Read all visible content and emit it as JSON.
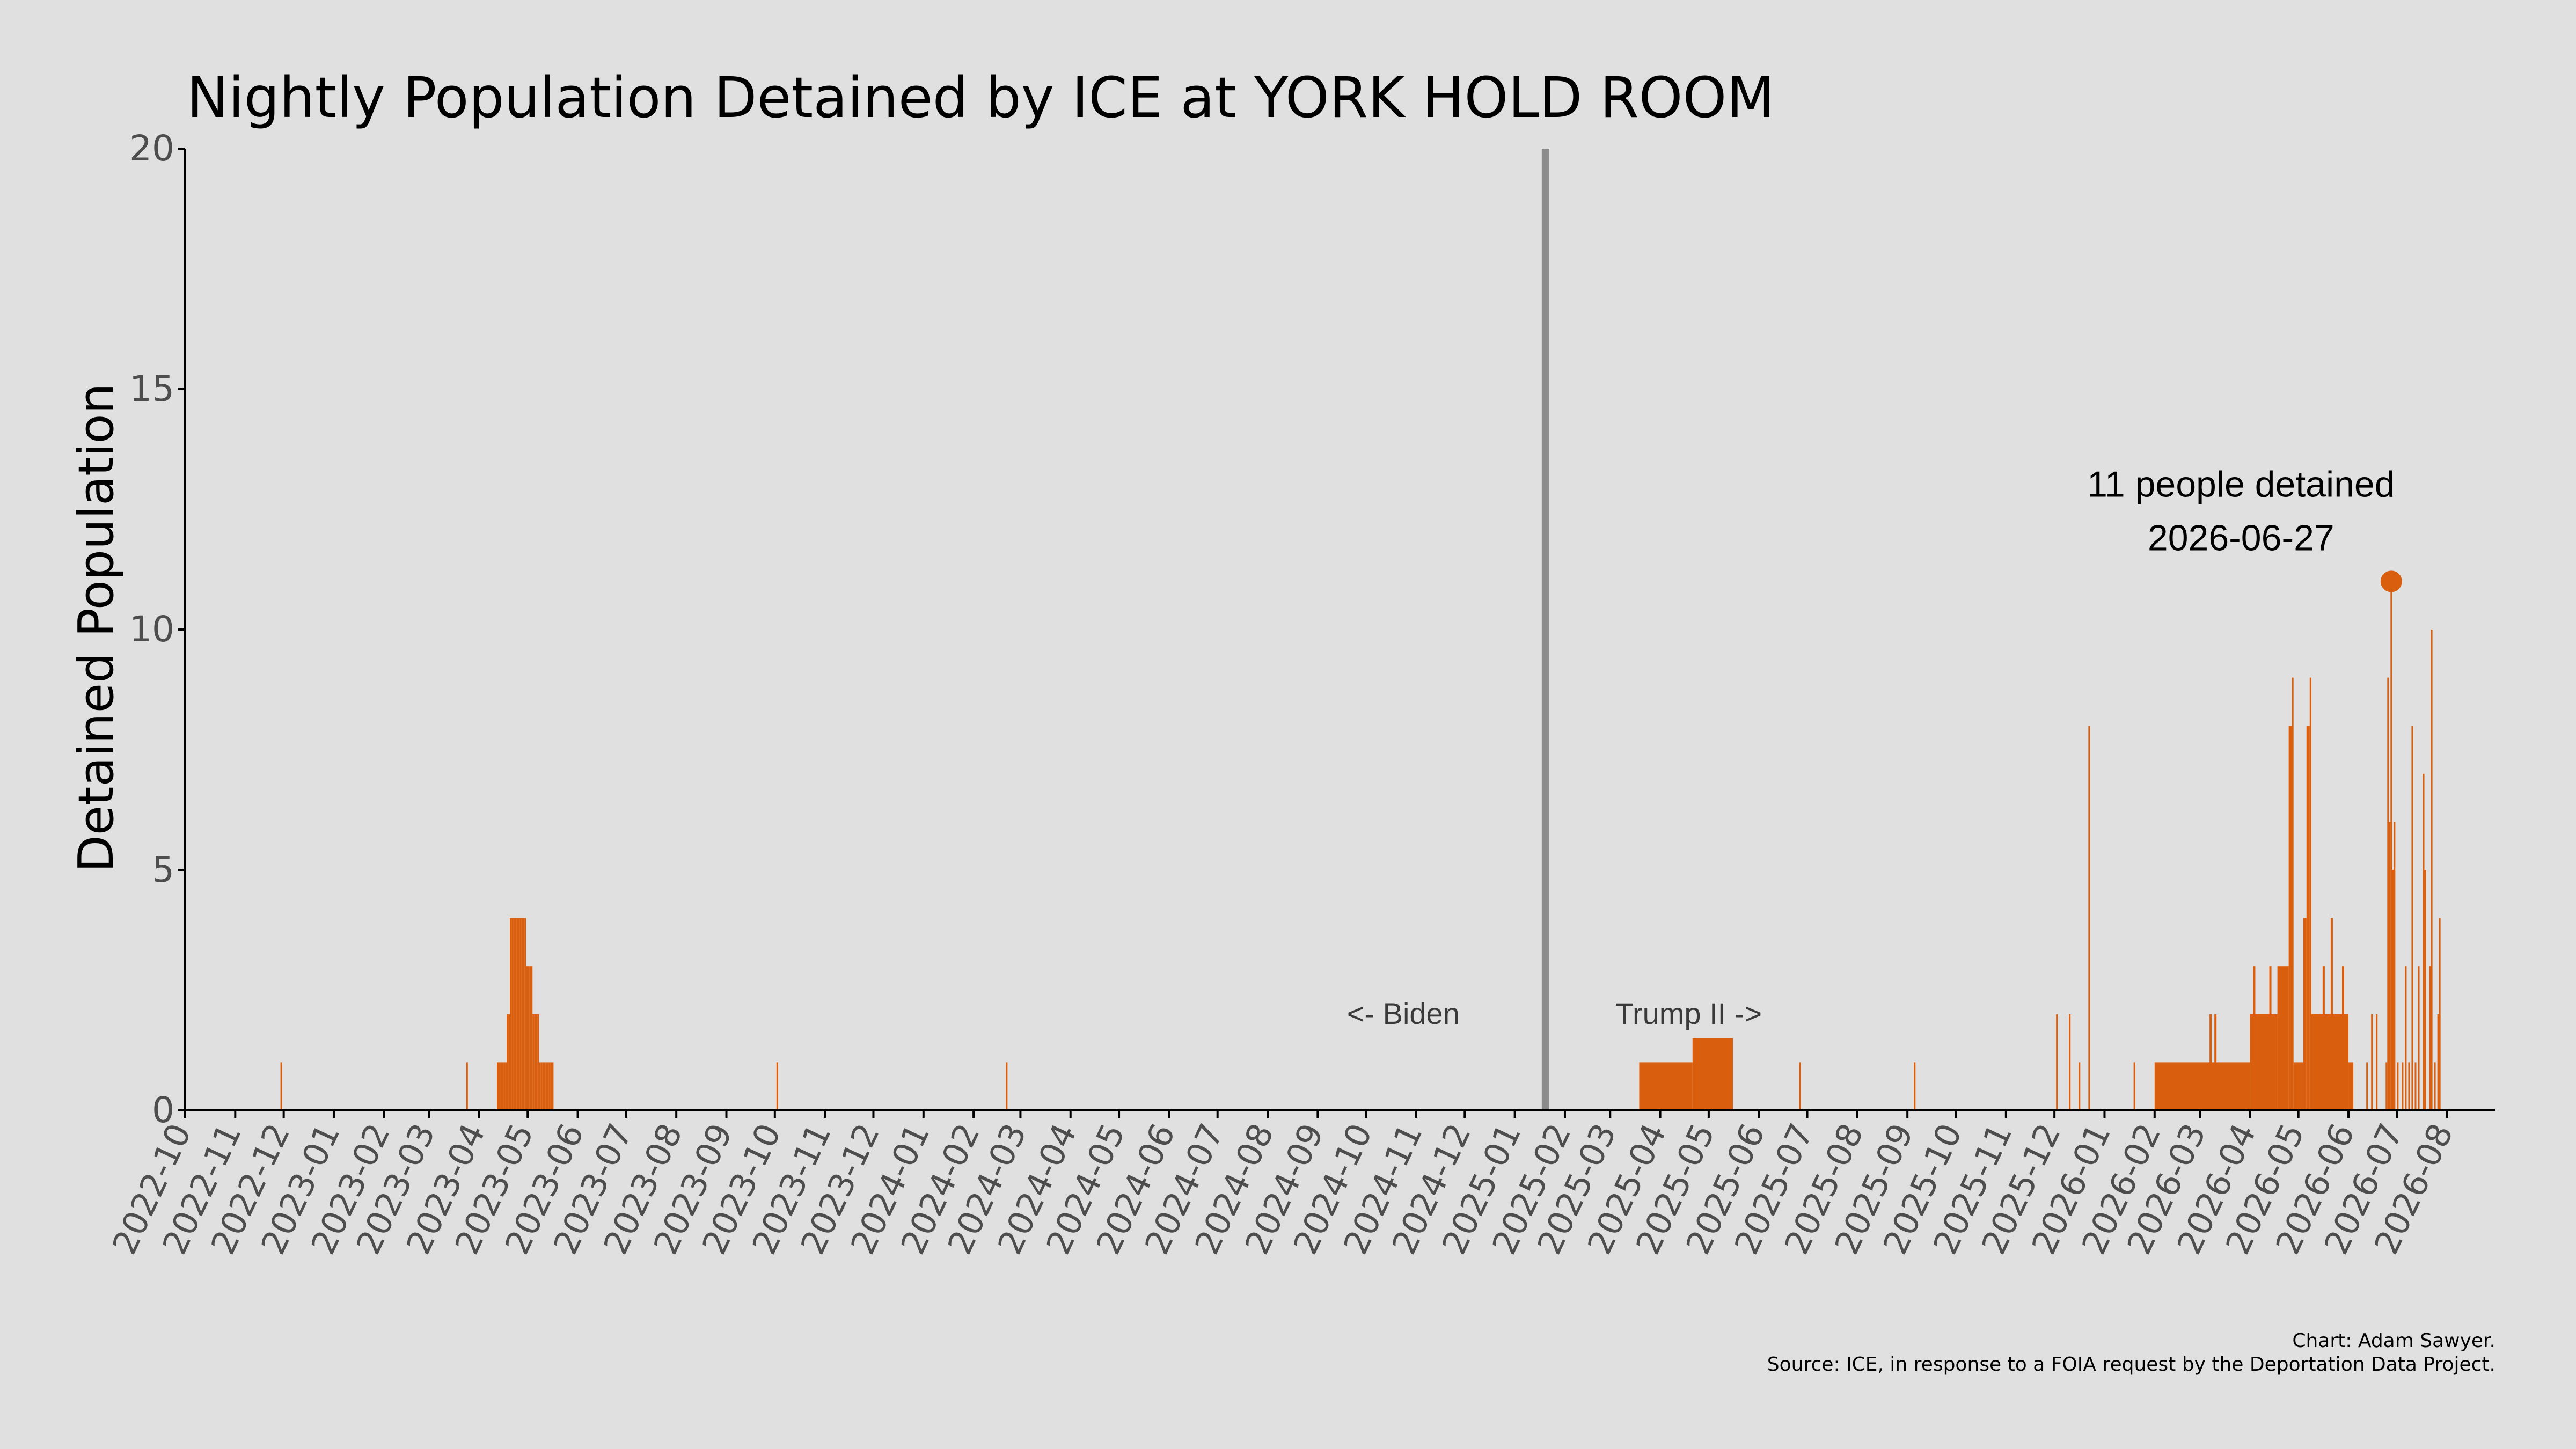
{
  "chart_data": {
    "type": "bar",
    "title": "Nightly Population Detained by ICE at YORK HOLD ROOM",
    "xlabel": "",
    "ylabel": "Detained Population",
    "ylim": [
      0,
      20
    ],
    "yticks": [
      0,
      5,
      10,
      15,
      20
    ],
    "xlim": [
      "2022-10-01",
      "2026-08-31"
    ],
    "xticks": [
      "2022-10",
      "2022-11",
      "2022-12",
      "2023-01",
      "2023-02",
      "2023-03",
      "2023-04",
      "2023-05",
      "2023-06",
      "2023-07",
      "2023-08",
      "2023-09",
      "2023-10",
      "2023-11",
      "2023-12",
      "2024-01",
      "2024-02",
      "2024-03",
      "2024-04",
      "2024-05",
      "2024-06",
      "2024-07",
      "2024-08",
      "2024-09",
      "2024-10",
      "2024-11",
      "2024-12",
      "2025-01",
      "2025-02",
      "2025-03",
      "2025-04",
      "2025-05",
      "2025-06",
      "2025-07",
      "2025-08",
      "2025-09",
      "2025-10",
      "2025-11",
      "2025-12",
      "2026-01",
      "2026-02",
      "2026-03",
      "2026-04",
      "2026-05",
      "2026-06",
      "2026-07",
      "2026-08"
    ],
    "grid": false,
    "bar_color": "#d95f0e",
    "series": [
      {
        "values": [
          [
            "2022-11-29",
            1
          ],
          [
            "2023-03-24",
            1
          ],
          [
            "2023-04-12",
            1
          ],
          [
            "2023-04-13",
            1
          ],
          [
            "2023-04-14",
            1
          ],
          [
            "2023-04-15",
            1
          ],
          [
            "2023-04-16",
            1
          ],
          [
            "2023-04-17",
            1
          ],
          [
            "2023-04-18",
            2
          ],
          [
            "2023-04-19",
            2
          ],
          [
            "2023-04-20",
            4
          ],
          [
            "2023-04-21",
            4
          ],
          [
            "2023-04-22",
            4
          ],
          [
            "2023-04-23",
            4
          ],
          [
            "2023-04-24",
            4
          ],
          [
            "2023-04-25",
            4
          ],
          [
            "2023-04-26",
            4
          ],
          [
            "2023-04-27",
            4
          ],
          [
            "2023-04-28",
            4
          ],
          [
            "2023-04-29",
            4
          ],
          [
            "2023-04-30",
            3
          ],
          [
            "2023-05-01",
            3
          ],
          [
            "2023-05-02",
            3
          ],
          [
            "2023-05-03",
            3
          ],
          [
            "2023-05-04",
            2
          ],
          [
            "2023-05-05",
            2
          ],
          [
            "2023-05-06",
            2
          ],
          [
            "2023-05-07",
            2
          ],
          [
            "2023-05-08",
            1
          ],
          [
            "2023-05-09",
            1
          ],
          [
            "2023-05-10",
            1
          ],
          [
            "2023-05-11",
            1
          ],
          [
            "2023-05-12",
            1
          ],
          [
            "2023-05-13",
            1
          ],
          [
            "2023-05-14",
            1
          ],
          [
            "2023-05-15",
            1
          ],
          [
            "2023-05-16",
            1
          ],
          [
            "2023-10-02",
            1
          ],
          [
            "2024-02-21",
            1
          ],
          [
            "2025-06-26",
            1
          ],
          [
            "2025-09-05",
            1
          ],
          [
            "2025-12-02",
            2
          ],
          [
            "2025-12-10",
            2
          ],
          [
            "2025-12-16",
            1
          ],
          [
            "2025-12-22",
            8
          ],
          [
            "2026-01-19",
            1
          ],
          [
            "2026-06-12",
            1
          ],
          [
            "2026-06-15",
            2
          ],
          [
            "2026-06-18",
            2
          ],
          [
            "2026-06-24",
            1
          ],
          [
            "2026-06-25",
            9
          ],
          [
            "2026-06-26",
            6
          ],
          [
            "2026-06-27",
            11
          ],
          [
            "2026-06-28",
            5
          ],
          [
            "2026-06-29",
            6
          ],
          [
            "2026-07-01",
            1
          ],
          [
            "2026-07-04",
            1
          ],
          [
            "2026-07-06",
            3
          ],
          [
            "2026-07-08",
            1
          ],
          [
            "2026-07-10",
            8
          ],
          [
            "2026-07-12",
            1
          ],
          [
            "2026-07-14",
            3
          ],
          [
            "2026-07-17",
            7
          ],
          [
            "2026-07-18",
            5
          ],
          [
            "2026-07-21",
            3
          ],
          [
            "2026-07-22",
            10
          ],
          [
            "2026-07-24",
            1
          ],
          [
            "2026-07-26",
            2
          ],
          [
            "2026-07-27",
            4
          ]
        ],
        "ranges": [
          [
            "2025-03-19",
            "2025-04-20",
            1
          ],
          [
            "2025-04-21",
            "2025-05-15",
            1.5
          ],
          [
            "2026-02-01",
            "2026-03-31",
            1
          ],
          [
            "2026-04-01",
            "2026-04-17",
            2
          ],
          [
            "2026-04-18",
            "2026-04-24",
            3
          ],
          [
            "2026-04-25",
            "2026-04-26",
            8
          ],
          [
            "2026-04-27",
            "2026-04-27",
            9
          ],
          [
            "2026-04-28",
            "2026-05-03",
            1
          ],
          [
            "2026-05-04",
            "2026-05-05",
            4
          ],
          [
            "2026-05-06",
            "2026-05-07",
            8
          ],
          [
            "2026-05-08",
            "2026-05-08",
            9
          ],
          [
            "2026-05-09",
            "2026-05-31",
            2
          ],
          [
            "2026-06-01",
            "2026-06-03",
            1
          ]
        ],
        "extra_spikes": [
          [
            "2026-03-07",
            2
          ],
          [
            "2026-03-10",
            2
          ],
          [
            "2026-04-03",
            3
          ],
          [
            "2026-04-13",
            3
          ],
          [
            "2026-05-16",
            3
          ],
          [
            "2026-05-21",
            4
          ],
          [
            "2026-05-28",
            3
          ]
        ]
      }
    ],
    "divider_date": "2025-01-20",
    "era_labels": {
      "left": "<- Biden",
      "right": "Trump II ->"
    },
    "annotation": {
      "line1": "11 people detained",
      "line2": "2026-06-27",
      "date": "2026-06-27",
      "value": 11
    },
    "credits": {
      "line1": "Chart: Adam Sawyer.",
      "line2": "Source: ICE, in response to a FOIA request by the Deportation Data Project."
    }
  }
}
